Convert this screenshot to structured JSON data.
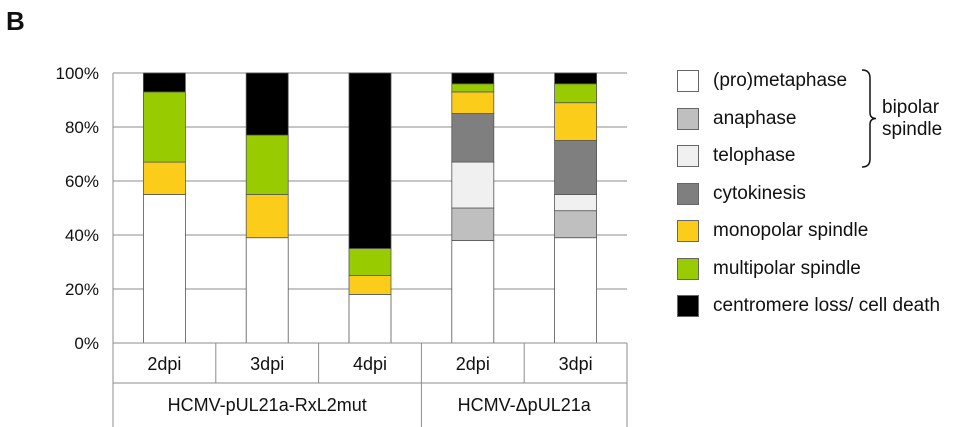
{
  "panel_label": "B",
  "chart_data": {
    "type": "bar",
    "stacked": true,
    "y_unit": "percent",
    "ylim": [
      0,
      100
    ],
    "yticks": [
      "0%",
      "20%",
      "40%",
      "60%",
      "80%",
      "100%"
    ],
    "grid": true,
    "legend_position": "right",
    "categories": [
      "2dpi",
      "3dpi",
      "4dpi",
      "2dpi",
      "3dpi"
    ],
    "groups": [
      {
        "label": "HCMV-pUL21a-RxL2mut",
        "categories": [
          0,
          1,
          2
        ]
      },
      {
        "label": "HCMV-ΔpUL21a",
        "categories": [
          3,
          4
        ]
      }
    ],
    "series": [
      {
        "name": "(pro)metaphase",
        "color": "#ffffff",
        "values": [
          55,
          39,
          18,
          38,
          39
        ]
      },
      {
        "name": "anaphase",
        "color": "#bfbfbf",
        "values": [
          0,
          0,
          0,
          12,
          10
        ]
      },
      {
        "name": "telophase",
        "color": "#f0f0f0",
        "values": [
          0,
          0,
          0,
          17,
          6
        ]
      },
      {
        "name": "cytokinesis",
        "color": "#7f7f7f",
        "values": [
          0,
          0,
          0,
          18,
          20
        ]
      },
      {
        "name": "monopolar spindle",
        "color": "#fccc1a",
        "values": [
          12,
          16,
          7,
          8,
          14
        ]
      },
      {
        "name": "multipolar spindle",
        "color": "#99cc00",
        "values": [
          26,
          22,
          10,
          3,
          7
        ]
      },
      {
        "name": "centromere loss/ cell death",
        "color": "#000000",
        "values": [
          7,
          23,
          65,
          4,
          4
        ]
      }
    ],
    "bracket_label": [
      "bipolar",
      "spindle"
    ],
    "bracket_series": [
      0,
      1,
      2
    ]
  }
}
